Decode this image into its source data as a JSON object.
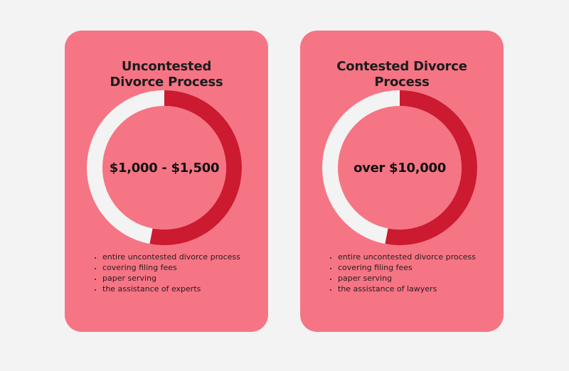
{
  "colors": {
    "background": "#f3f3f3",
    "card": "#f57585",
    "ring_fill": "#cc1a30",
    "ring_track": "#f3f3f3"
  },
  "cards": [
    {
      "title_lines": [
        "Uncontested",
        "Divorce Process"
      ],
      "amount": "$1,000 - $1,500",
      "ring_fill_fraction": 0.53,
      "bullets": [
        "entire uncontested divorce process",
        "covering filing fees",
        "paper serving",
        "the assistance of experts"
      ]
    },
    {
      "title_lines": [
        "Contested Divorce",
        "Process"
      ],
      "amount": "over $10,000",
      "ring_fill_fraction": 0.53,
      "bullets": [
        "entire uncontested divorce process",
        "covering filing fees",
        "paper serving",
        "the assistance of lawyers"
      ]
    }
  ]
}
